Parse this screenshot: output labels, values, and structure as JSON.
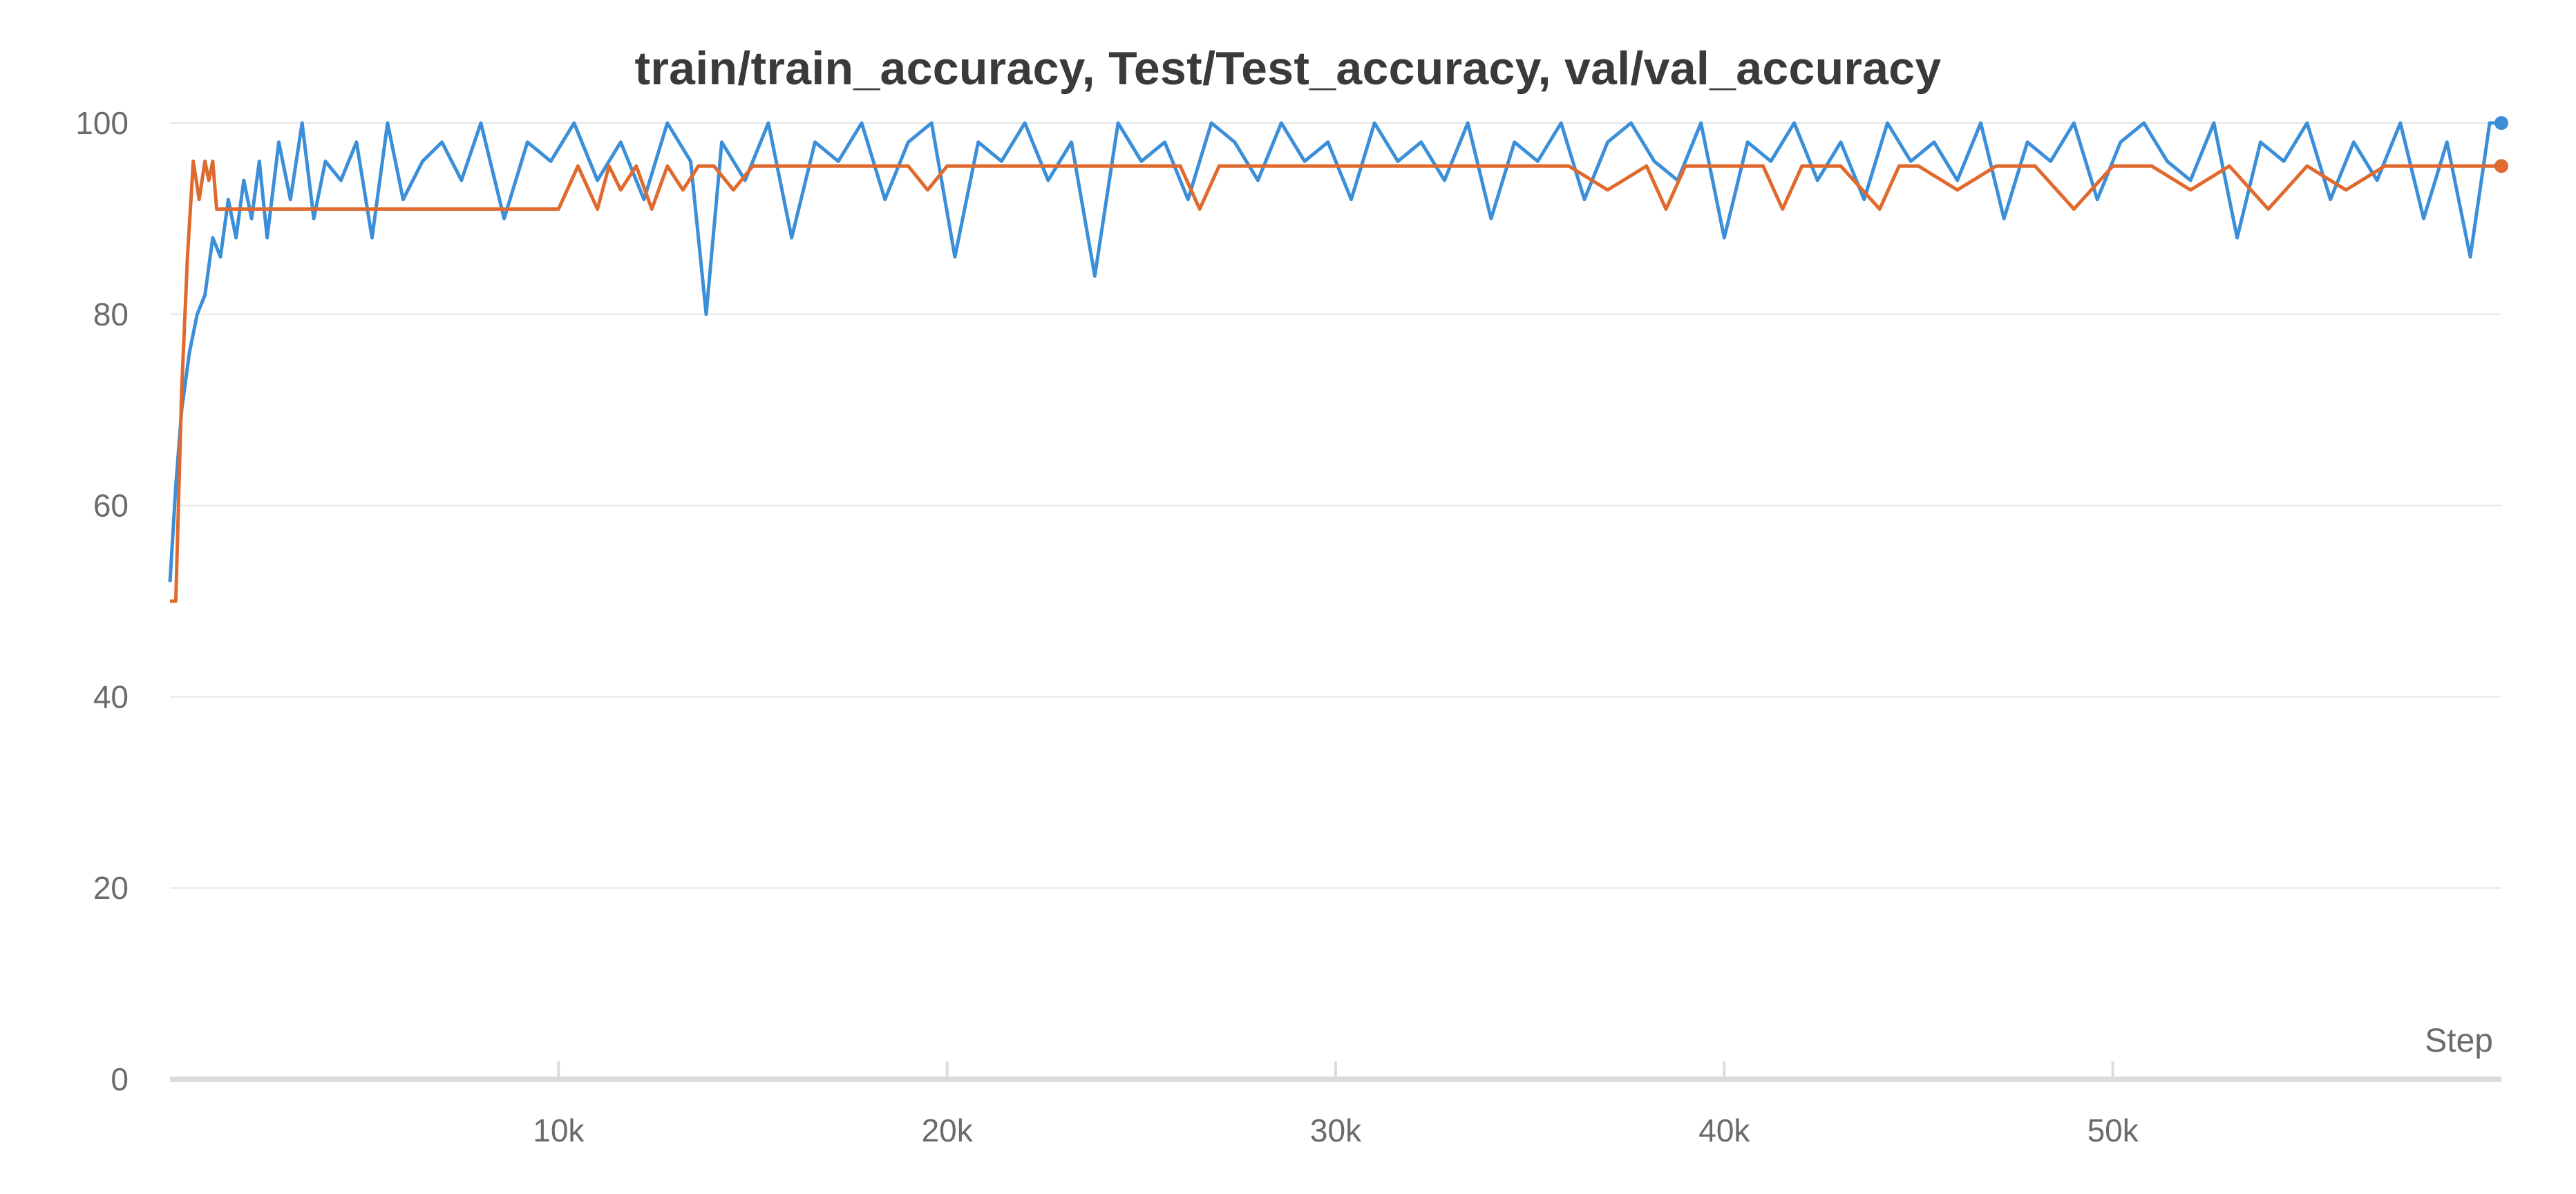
{
  "chart_data": {
    "type": "line",
    "title": "train/train_accuracy, Test/Test_accuracy, val/val_accuracy",
    "xlabel": "Step",
    "ylabel": "",
    "xlim": [
      0,
      60000
    ],
    "ylim": [
      0,
      100
    ],
    "x_ticks": [
      10000,
      20000,
      30000,
      40000,
      50000
    ],
    "x_tick_labels": [
      "10k",
      "20k",
      "30k",
      "40k",
      "50k"
    ],
    "y_ticks": [
      0,
      20,
      40,
      60,
      80,
      100
    ],
    "y_tick_labels": [
      "0",
      "20",
      "40",
      "60",
      "80",
      "100"
    ],
    "grid": true,
    "legend": "none",
    "colors": {
      "train": "#3b8fd8",
      "val": "#e0692e",
      "grid": "#e6e6e6",
      "axis": "#dcdcdc"
    },
    "series": [
      {
        "key": "train",
        "color": "#3b8fd8",
        "x": [
          0,
          150,
          300,
          500,
          700,
          900,
          1100,
          1300,
          1500,
          1700,
          1900,
          2100,
          2300,
          2500,
          2800,
          3100,
          3400,
          3700,
          4000,
          4400,
          4800,
          5200,
          5600,
          6000,
          6500,
          7000,
          7500,
          8000,
          8600,
          9200,
          9800,
          10400,
          11000,
          11600,
          12200,
          12800,
          13400,
          13800,
          14200,
          14800,
          15400,
          16000,
          16600,
          17200,
          17800,
          18400,
          19000,
          19600,
          20200,
          20800,
          21400,
          22000,
          22600,
          23200,
          23800,
          24400,
          25000,
          25600,
          26200,
          26800,
          27400,
          28000,
          28600,
          29200,
          29800,
          30400,
          31000,
          31600,
          32200,
          32800,
          33400,
          34000,
          34600,
          35200,
          35800,
          36400,
          37000,
          37600,
          38200,
          38800,
          39400,
          40000,
          40600,
          41200,
          41800,
          42400,
          43000,
          43600,
          44200,
          44800,
          45400,
          46000,
          46600,
          47200,
          47800,
          48400,
          49000,
          49600,
          50200,
          50800,
          51400,
          52000,
          52600,
          53200,
          53800,
          54400,
          55000,
          55600,
          56200,
          56800,
          57400,
          58000,
          58600,
          59200,
          59700,
          60000
        ],
        "y": [
          52,
          62,
          70,
          76,
          80,
          82,
          88,
          86,
          92,
          88,
          94,
          90,
          96,
          88,
          98,
          92,
          100,
          90,
          96,
          94,
          98,
          88,
          100,
          92,
          96,
          98,
          94,
          100,
          90,
          98,
          96,
          100,
          94,
          98,
          92,
          100,
          96,
          80,
          98,
          94,
          100,
          88,
          98,
          96,
          100,
          92,
          98,
          100,
          86,
          98,
          96,
          100,
          94,
          98,
          84,
          100,
          96,
          98,
          92,
          100,
          98,
          94,
          100,
          96,
          98,
          92,
          100,
          96,
          98,
          94,
          100,
          90,
          98,
          96,
          100,
          92,
          98,
          100,
          96,
          94,
          100,
          88,
          98,
          96,
          100,
          94,
          98,
          92,
          100,
          96,
          98,
          94,
          100,
          90,
          98,
          96,
          100,
          92,
          98,
          100,
          96,
          94,
          100,
          88,
          98,
          96,
          100,
          92,
          98,
          94,
          100,
          90,
          98,
          86,
          100,
          100
        ]
      },
      {
        "key": "val",
        "color": "#e0692e",
        "x": [
          0,
          150,
          300,
          450,
          600,
          750,
          900,
          1000,
          1100,
          1200,
          1500,
          2000,
          3000,
          4000,
          5000,
          6000,
          7000,
          8000,
          8500,
          9000,
          9500,
          10000,
          10500,
          11000,
          11300,
          11600,
          12000,
          12400,
          12800,
          13200,
          13600,
          14000,
          14500,
          15000,
          16000,
          17000,
          18000,
          19000,
          19500,
          20000,
          21000,
          22000,
          23000,
          24000,
          25000,
          26000,
          26500,
          27000,
          28000,
          29000,
          30000,
          31000,
          32000,
          33000,
          34000,
          35000,
          36000,
          37000,
          38000,
          38500,
          39000,
          40000,
          41000,
          41500,
          42000,
          43000,
          44000,
          44500,
          45000,
          46000,
          47000,
          48000,
          49000,
          50000,
          51000,
          52000,
          53000,
          54000,
          55000,
          56000,
          57000,
          58000,
          59000,
          60000
        ],
        "y": [
          50,
          50,
          72,
          86,
          96,
          92,
          96,
          94,
          96,
          91,
          91,
          91,
          91,
          91,
          91,
          91,
          91,
          91,
          91,
          91,
          91,
          91,
          95.5,
          91,
          95.5,
          93,
          95.5,
          91,
          95.5,
          93,
          95.5,
          95.5,
          93,
          95.5,
          95.5,
          95.5,
          95.5,
          95.5,
          93,
          95.5,
          95.5,
          95.5,
          95.5,
          95.5,
          95.5,
          95.5,
          91,
          95.5,
          95.5,
          95.5,
          95.5,
          95.5,
          95.5,
          95.5,
          95.5,
          95.5,
          95.5,
          93,
          95.5,
          91,
          95.5,
          95.5,
          95.5,
          91,
          95.5,
          95.5,
          91,
          95.5,
          95.5,
          93,
          95.5,
          95.5,
          91,
          95.5,
          95.5,
          93,
          95.5,
          91,
          95.5,
          93,
          95.5,
          95.5,
          95.5,
          95.5
        ]
      }
    ]
  }
}
